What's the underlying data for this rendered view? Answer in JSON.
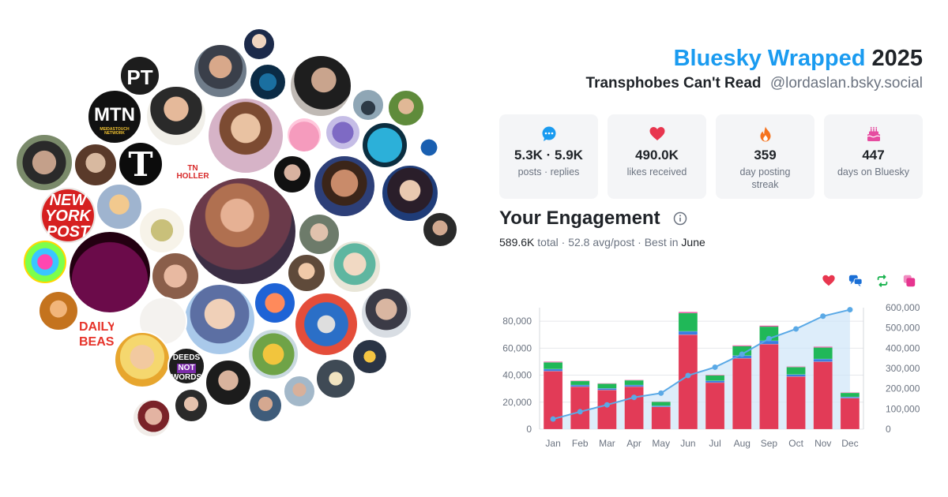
{
  "header": {
    "brand": "Bluesky Wrapped",
    "year": "2025",
    "display_name": "Transphobes Can't Read",
    "handle": "@lordaslan.bsky.social"
  },
  "stats": [
    {
      "icon": "chat-bubble-icon",
      "value": "5.3K · 5.9K",
      "label": "posts · replies",
      "color": "#1a9bf0"
    },
    {
      "icon": "heart-icon",
      "value": "490.0K",
      "label": "likes received",
      "color": "#e8364f"
    },
    {
      "icon": "flame-icon",
      "value": "359",
      "label": "day posting streak",
      "color": "#f5731f"
    },
    {
      "icon": "cake-icon",
      "value": "447",
      "label": "days on Bluesky",
      "color": "#e64ca0"
    }
  ],
  "engagement": {
    "title": "Your Engagement",
    "total_value": "589.6K",
    "total_word": "total",
    "avg_value": "52.8 avg/post",
    "best_prefix": "Best in",
    "best_month": "June",
    "sep": "·"
  },
  "legend_icons": [
    {
      "icon": "heart-icon",
      "color": "#e8364f"
    },
    {
      "icon": "reply-icon",
      "color": "#1a6fd6"
    },
    {
      "icon": "repost-icon",
      "color": "#1ab34f"
    },
    {
      "icon": "quote-icon",
      "color": "#e6348f"
    }
  ],
  "chart_data": {
    "type": "bar",
    "categories": [
      "Jan",
      "Feb",
      "Mar",
      "Apr",
      "May",
      "Jun",
      "Jul",
      "Aug",
      "Sep",
      "Oct",
      "Nov",
      "Dec"
    ],
    "series": [
      {
        "values": [
          43000,
          31500,
          29000,
          31500,
          16500,
          70000,
          34500,
          52500,
          63000,
          39000,
          50000,
          23000
        ],
        "color": "#e23b57"
      },
      {
        "values": [
          1500,
          1200,
          1200,
          1200,
          800,
          2500,
          1400,
          2000,
          2500,
          1500,
          2000,
          900
        ],
        "color": "#3a7de0"
      },
      {
        "values": [
          5000,
          3000,
          3500,
          3500,
          3000,
          13500,
          4000,
          7000,
          10500,
          5500,
          8500,
          3000
        ],
        "color": "#20b858"
      },
      {
        "values": [
          500,
          300,
          300,
          300,
          200,
          800,
          400,
          600,
          700,
          400,
          600,
          300
        ],
        "color": "#e6348f"
      }
    ],
    "cumulative": {
      "values": [
        50000,
        86000,
        120000,
        157000,
        178000,
        265000,
        306000,
        370000,
        447000,
        495000,
        558000,
        590000
      ],
      "color": "#5aa9e6"
    },
    "ylim_left": [
      0,
      90000
    ],
    "ylim_right": [
      0,
      600000
    ],
    "yticks_left": [
      "0",
      "20,000",
      "40,000",
      "60,000",
      "80,000"
    ],
    "yticks_left_values": [
      0,
      20000,
      40000,
      60000,
      80000
    ],
    "yticks_right": [
      "0",
      "100,000",
      "200,000",
      "300,000",
      "400,000",
      "500,000",
      "600,000"
    ],
    "yticks_right_values": [
      0,
      100000,
      200000,
      300000,
      400000,
      500000,
      600000
    ],
    "grid": true
  },
  "bubble_labels": {
    "pt": "PT",
    "mtn": "MTN",
    "mtn_sub": "MEIDASTOUCH NETWORK",
    "nyt": "T",
    "tn": "TN HOLLER",
    "nypost_1": "NEW",
    "nypost_2": "YORK",
    "nypost_3": "POST",
    "daily_1": "DAILY",
    "daily_2": "BEAST",
    "deeds_1": "DEEDS",
    "deeds_2": "NOT",
    "deeds_3": "WORDS"
  }
}
